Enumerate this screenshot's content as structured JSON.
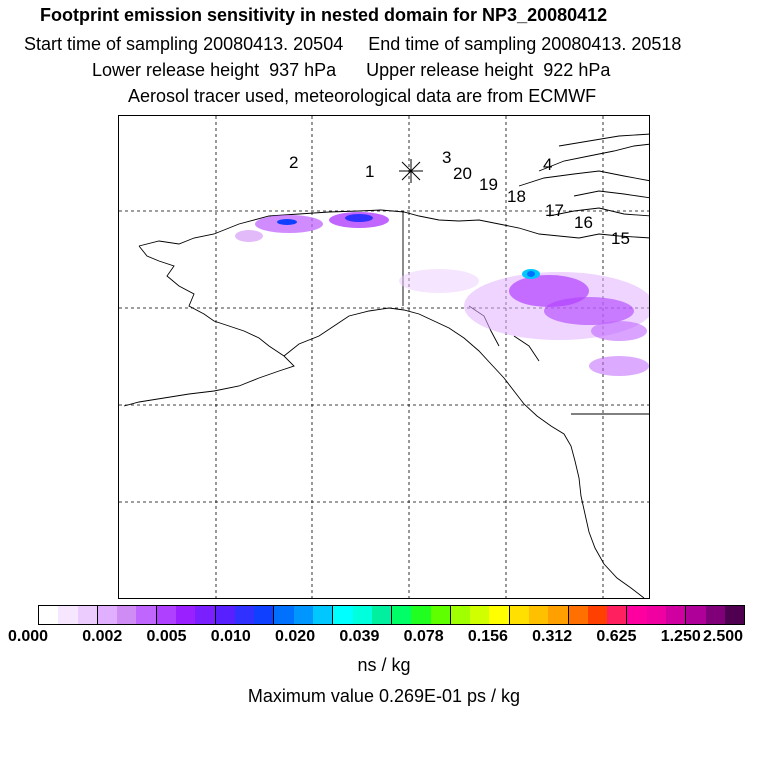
{
  "title": {
    "main": "Footprint emission sensitivity in nested domain for NP3_20080412",
    "sampling": "Start time of sampling 20080413. 20504     End time of sampling 20080413. 20518",
    "release": "Lower release height  937 hPa      Upper release height  922 hPa",
    "info": "Aerosol tracer used, meteorological data are from ECMWF"
  },
  "map": {
    "release_marker": "asterisk",
    "trajectory_labels": [
      "2",
      "1",
      "3",
      "20",
      "19",
      "18",
      "4",
      "17",
      "16",
      "15"
    ]
  },
  "colorbar": {
    "colors": [
      "#ffffff",
      "#f6e6ff",
      "#ecccff",
      "#e0b0ff",
      "#d08cf5",
      "#c066ff",
      "#b040ff",
      "#9a20ff",
      "#7a20ff",
      "#5820ff",
      "#3030ff",
      "#1040ff",
      "#0070ff",
      "#0096ff",
      "#00c8ff",
      "#00ffff",
      "#00ffdd",
      "#00f0a0",
      "#00ff66",
      "#20ff20",
      "#60ff00",
      "#a0ff00",
      "#d0ff00",
      "#ffff00",
      "#ffe000",
      "#ffc000",
      "#ffa000",
      "#ff7000",
      "#ff4000",
      "#ff2060",
      "#ff00a0",
      "#f000a0",
      "#d000a0",
      "#b0009a",
      "#80007a",
      "#500050"
    ],
    "tick_labels": [
      "0.000",
      "0.002",
      "0.005",
      "0.010",
      "0.020",
      "0.039",
      "0.078",
      "0.156",
      "0.312",
      "0.625",
      "1.250",
      "2.500"
    ]
  },
  "units": "ns / kg",
  "max_value": "Maximum value  0.269E-01 ps / kg"
}
